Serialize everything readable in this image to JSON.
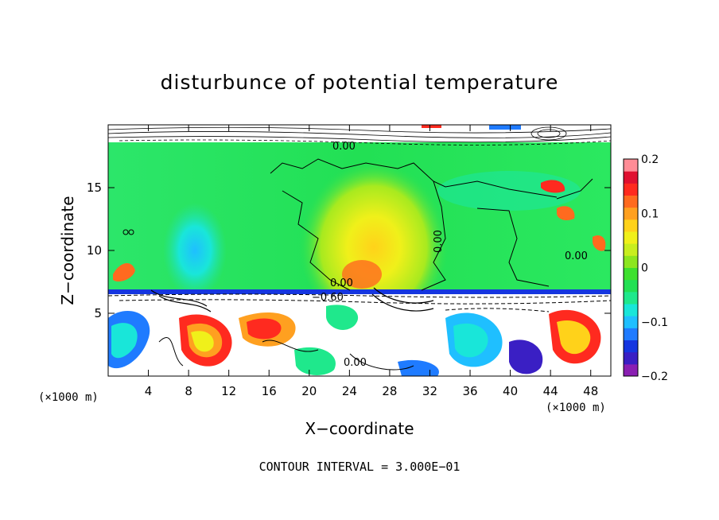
{
  "chart_data": {
    "type": "heatmap",
    "title": "disturbunce of potential temperature",
    "xlabel": "X−coordinate",
    "ylabel": "Z−coordinate",
    "x_unit": "(×1000 m)",
    "x_range": [
      0,
      50
    ],
    "y_range": [
      0,
      20
    ],
    "x_ticks": [
      4,
      8,
      12,
      16,
      20,
      24,
      28,
      32,
      36,
      40,
      44,
      48
    ],
    "y_ticks": [
      5,
      10,
      15
    ],
    "colorbar": {
      "range": [
        -0.2,
        0.2
      ],
      "tick_values": [
        0.2,
        0.1,
        0,
        -0.1,
        -0.2
      ],
      "tick_labels": [
        "0.2",
        "0.1",
        "0",
        "−0.1",
        "−0.2"
      ],
      "colors": [
        "#8a1fb2",
        "#3a1fc4",
        "#1536e0",
        "#1f7bff",
        "#1fbfff",
        "#19e6d9",
        "#1fe88c",
        "#22e054",
        "#3ee02e",
        "#8ce61f",
        "#c8ee1f",
        "#f0f01a",
        "#ffd21a",
        "#ffa020",
        "#ff6a1f",
        "#ff2a1f",
        "#e01030",
        "#ff8c96"
      ]
    },
    "contour_labels": [
      "0.00",
      "−0.60"
    ],
    "footer": "CONTOUR INTERVAL = 3.000E−01"
  }
}
